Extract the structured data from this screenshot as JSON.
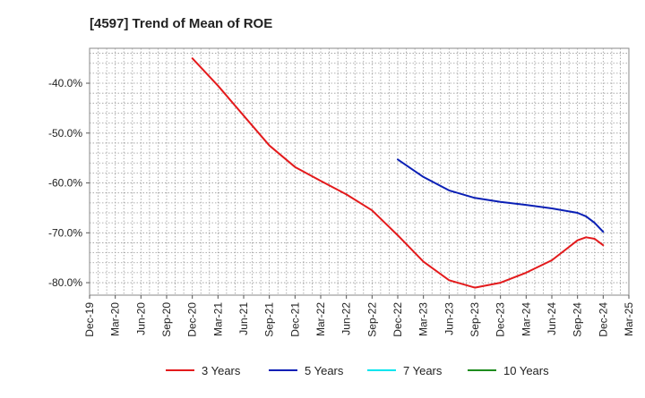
{
  "chart_data": {
    "type": "line",
    "title": "[4597]  Trend of Mean of ROE",
    "xlabel": "",
    "ylabel": "",
    "x_labels": [
      "Dec-19",
      "Mar-20",
      "Jun-20",
      "Sep-20",
      "Dec-20",
      "Mar-21",
      "Jun-21",
      "Sep-21",
      "Dec-21",
      "Mar-22",
      "Jun-22",
      "Sep-22",
      "Dec-22",
      "Mar-23",
      "Jun-23",
      "Sep-23",
      "Dec-23",
      "Mar-24",
      "Jun-24",
      "Sep-24",
      "Dec-24",
      "Mar-25"
    ],
    "y_ticks": [
      -40,
      -50,
      -60,
      -70,
      -80
    ],
    "y_tick_labels": [
      "-40.0%",
      "-50.0%",
      "-60.0%",
      "-70.0%",
      "-80.0%"
    ],
    "ylim": [
      -82.5,
      -33
    ],
    "grid": true,
    "legend_position": "bottom",
    "series": [
      {
        "name": "3 Years",
        "color": "#e31a1c",
        "points": [
          [
            "Dec-20",
            -35.0
          ],
          [
            "Mar-21",
            -40.5
          ],
          [
            "Jun-21",
            -46.5
          ],
          [
            "Sep-21",
            -52.5
          ],
          [
            "Dec-21",
            -56.8
          ],
          [
            "Mar-22",
            -59.6
          ],
          [
            "Jun-22",
            -62.3
          ],
          [
            "Sep-22",
            -65.5
          ],
          [
            "Dec-22",
            -70.5
          ],
          [
            "Mar-23",
            -75.8
          ],
          [
            "Jun-23",
            -79.5
          ],
          [
            "Sep-23",
            -81.0
          ],
          [
            "Dec-23",
            -80.0
          ],
          [
            "Mar-24",
            -78.0
          ],
          [
            "Jun-24",
            -75.5
          ],
          [
            "Sep-24",
            -71.5
          ],
          [
            "Oct-24",
            -70.9
          ],
          [
            "Nov-24",
            -71.2
          ],
          [
            "Dec-24",
            -72.5
          ]
        ]
      },
      {
        "name": "5 Years",
        "color": "#0a1fb5",
        "points": [
          [
            "Dec-22",
            -55.3
          ],
          [
            "Mar-23",
            -58.8
          ],
          [
            "Jun-23",
            -61.5
          ],
          [
            "Sep-23",
            -63.0
          ],
          [
            "Dec-23",
            -63.8
          ],
          [
            "Mar-24",
            -64.4
          ],
          [
            "Jun-24",
            -65.1
          ],
          [
            "Sep-24",
            -66.0
          ],
          [
            "Oct-24",
            -66.7
          ],
          [
            "Nov-24",
            -68.0
          ],
          [
            "Dec-24",
            -69.8
          ]
        ]
      },
      {
        "name": "7 Years",
        "color": "#00e5ee",
        "points": []
      },
      {
        "name": "10 Years",
        "color": "#1e8c1e",
        "points": []
      }
    ]
  }
}
